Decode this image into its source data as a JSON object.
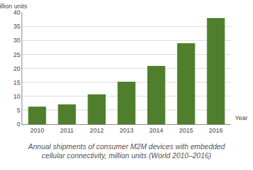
{
  "chart_data": {
    "type": "bar",
    "title": "Annual shipments of consumer M2M devices with embedded cellular connectivity, million units (World 2010–2016)",
    "x_label": "Year",
    "y_label": "Million units",
    "categories": [
      "2010",
      "2011",
      "2012",
      "2013",
      "2014",
      "2015",
      "2016"
    ],
    "values": [
      6.3,
      7.1,
      10.7,
      15.2,
      20.9,
      29,
      38
    ],
    "color": "#4f7f2c",
    "ylim": [
      0,
      40
    ],
    "yticks": [
      0,
      5,
      10,
      15,
      20,
      25,
      30,
      35,
      40
    ],
    "grid": true
  }
}
